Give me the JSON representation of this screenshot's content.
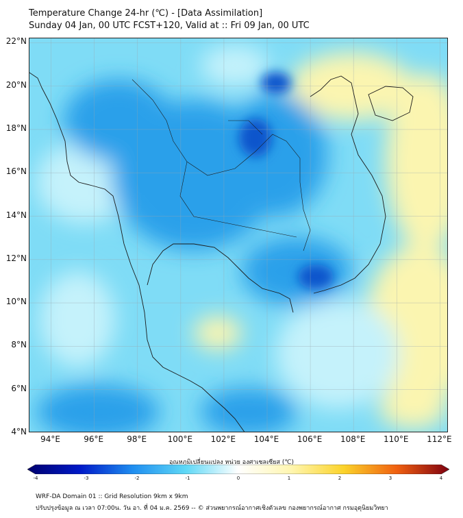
{
  "header": {
    "title": "Temperature Change 24-hr (℃) - [Data Assimilation]",
    "subtitle": "Sunday 04 Jan, 00 UTC FCST+120, Valid at :: Fri 09 Jan, 00 UTC"
  },
  "map": {
    "lat_labels": [
      "22°N",
      "20°N",
      "18°N",
      "16°N",
      "14°N",
      "12°N",
      "10°N",
      "8°N",
      "6°N",
      "4°N"
    ],
    "lon_labels": [
      "94°E",
      "96°E",
      "98°E",
      "100°E",
      "102°E",
      "104°E",
      "106°E",
      "108°E",
      "110°E",
      "112°E"
    ],
    "lat_range": [
      4,
      22.2
    ],
    "lon_range": [
      93,
      112.4
    ],
    "colors": {
      "strong_cool": "#0f55cc",
      "moderate_cool": "#2aa0ea",
      "weak_cool": "#52d2f5",
      "near_zero": "#c5f2fb",
      "warm": "#fbf5b0"
    }
  },
  "colorbar": {
    "label": "อุณหภูมิเปลี่ยนแปลง หน่วย องศาเซลเซียส (℃)",
    "ticks": [
      "-4",
      "-3",
      "-2",
      "-1",
      "0",
      "1",
      "2",
      "3",
      "4"
    ],
    "min": -4,
    "max": 4
  },
  "footer": {
    "line1": "WRF-DA Domain 01 :: Grid Resolution 9km x 9km",
    "line2": "ปรับปรุงข้อมูล ณ เวลา 07:00น. วัน อา. ที่ 04 ม.ค. 2569 -- © ส่วนพยากรณ์อากาศเชิงตัวเลข กองพยากรณ์อากาศ กรมอุตุนิยมวิทยา"
  }
}
